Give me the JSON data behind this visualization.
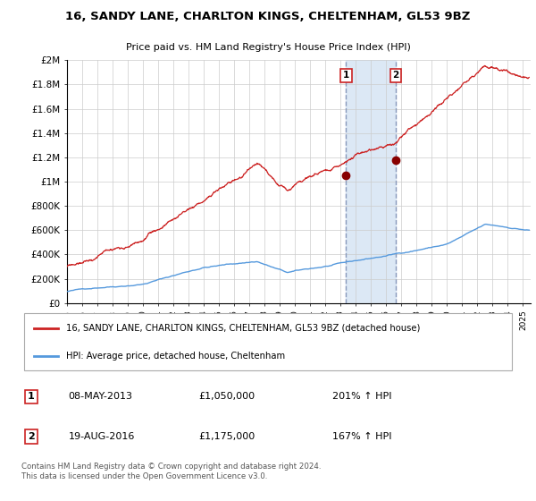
{
  "title": "16, SANDY LANE, CHARLTON KINGS, CHELTENHAM, GL53 9BZ",
  "subtitle": "Price paid vs. HM Land Registry's House Price Index (HPI)",
  "ylim": [
    0,
    2000000
  ],
  "yticks": [
    0,
    200000,
    400000,
    600000,
    800000,
    1000000,
    1200000,
    1400000,
    1600000,
    1800000,
    2000000
  ],
  "ytick_labels": [
    "£0",
    "£200K",
    "£400K",
    "£600K",
    "£800K",
    "£1M",
    "£1.2M",
    "£1.4M",
    "£1.6M",
    "£1.8M",
    "£2M"
  ],
  "xlim_start": 1995.0,
  "xlim_end": 2025.5,
  "transaction1_date": 2013.36,
  "transaction1_price": 1050000,
  "transaction1_label": "1",
  "transaction2_date": 2016.63,
  "transaction2_price": 1175000,
  "transaction2_label": "2",
  "legend_line1": "16, SANDY LANE, CHARLTON KINGS, CHELTENHAM, GL53 9BZ (detached house)",
  "legend_line2": "HPI: Average price, detached house, Cheltenham",
  "annotation1_date": "08-MAY-2013",
  "annotation1_price": "£1,050,000",
  "annotation1_hpi": "201% ↑ HPI",
  "annotation2_date": "19-AUG-2016",
  "annotation2_price": "£1,175,000",
  "annotation2_hpi": "167% ↑ HPI",
  "footer": "Contains HM Land Registry data © Crown copyright and database right 2024.\nThis data is licensed under the Open Government Licence v3.0.",
  "red_color": "#cc2222",
  "blue_color": "#5599dd",
  "vline_color": "#8899bb",
  "shading_color": "#dce8f5",
  "grid_color": "#cccccc",
  "background_color": "#ffffff"
}
